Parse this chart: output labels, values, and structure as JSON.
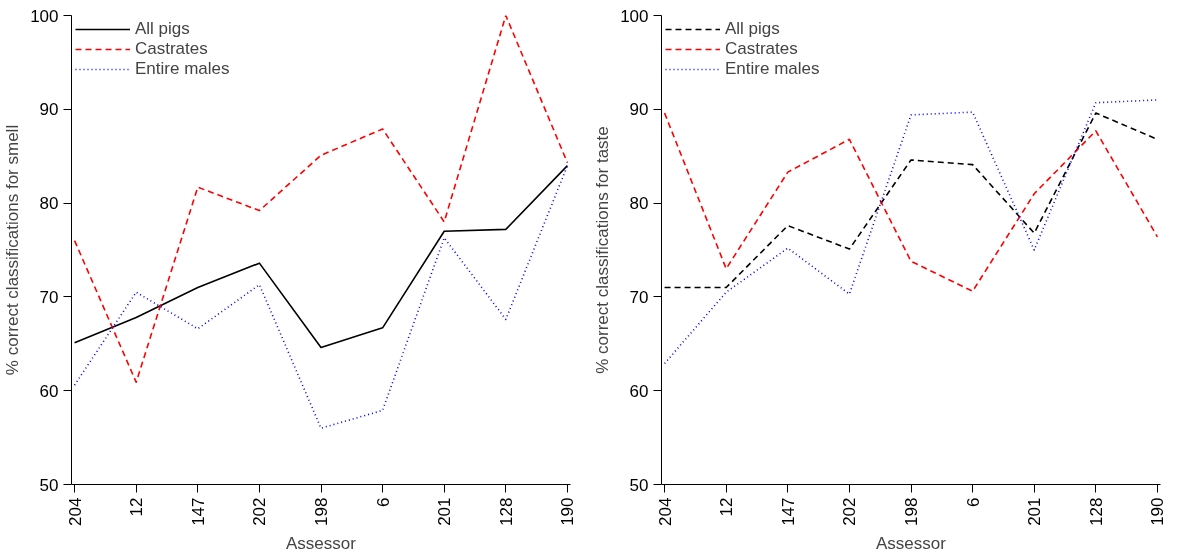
{
  "chart_data": [
    {
      "type": "line",
      "xlabel": "Assessor",
      "ylabel": "% correct classifications for smell",
      "categories": [
        "204",
        "12",
        "147",
        "202",
        "198",
        "6",
        "201",
        "128",
        "190"
      ],
      "ylim": [
        50,
        100
      ],
      "yticks": [
        50,
        60,
        70,
        80,
        90,
        100
      ],
      "grid": false,
      "legend": "top left",
      "marker": "none",
      "series": [
        {
          "name": "All pigs",
          "color": "#000000",
          "line_style": "solid",
          "values": [
            65.1,
            67.8,
            71.0,
            73.6,
            64.6,
            66.7,
            77.0,
            77.2,
            84.0
          ]
        },
        {
          "name": "Castrates",
          "color": "#ff0000",
          "line_style": "dashed",
          "values": [
            76.0,
            60.9,
            81.7,
            79.2,
            85.1,
            87.9,
            78.0,
            100.0,
            84.3
          ]
        },
        {
          "name": "Entire males",
          "color": "#0000ff",
          "line_style": "dotted",
          "values": [
            60.6,
            70.5,
            66.6,
            71.3,
            56.0,
            57.9,
            76.3,
            67.6,
            84.0
          ]
        }
      ]
    },
    {
      "type": "line",
      "xlabel": "Assessor",
      "ylabel": "% correct classifications for taste",
      "categories": [
        "204",
        "12",
        "147",
        "202",
        "198",
        "6",
        "201",
        "128",
        "190"
      ],
      "ylim": [
        50,
        100
      ],
      "yticks": [
        50,
        60,
        70,
        80,
        90,
        100
      ],
      "grid": false,
      "legend": "top left",
      "marker": "none",
      "series": [
        {
          "name": "All pigs",
          "color": "#000000",
          "line_style": "dashed",
          "values": [
            71.0,
            71.0,
            77.6,
            75.1,
            84.6,
            84.1,
            76.8,
            89.6,
            86.8
          ]
        },
        {
          "name": "Castrates",
          "color": "#ff0000",
          "line_style": "dashed",
          "values": [
            89.6,
            73.0,
            83.3,
            86.8,
            73.8,
            70.6,
            81.0,
            87.7,
            76.4
          ]
        },
        {
          "name": "Entire males",
          "color": "#0000ff",
          "line_style": "dotted",
          "values": [
            62.9,
            70.5,
            75.2,
            70.3,
            89.4,
            89.7,
            75.0,
            90.7,
            91.0
          ]
        }
      ]
    }
  ]
}
